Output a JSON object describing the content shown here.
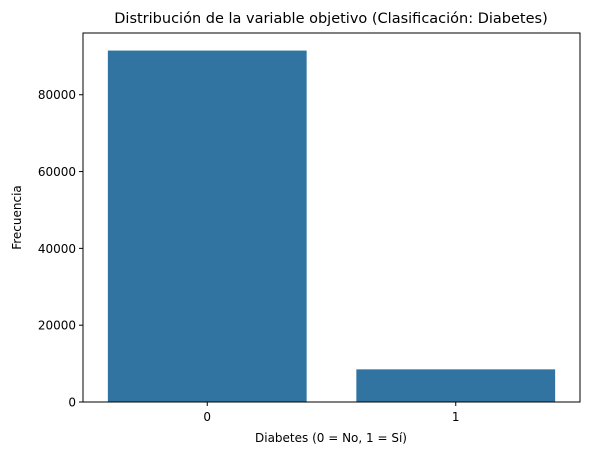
{
  "chart_data": {
    "type": "bar",
    "title": "Distribución de la variable objetivo (Clasificación: Diabetes)",
    "xlabel": "Diabetes (0 = No, 1 = Sí)",
    "ylabel": "Frecuencia",
    "categories": [
      "0",
      "1"
    ],
    "values": [
      91500,
      8500
    ],
    "ylim": [
      0,
      96075
    ],
    "yticks": [
      0,
      20000,
      40000,
      60000,
      80000
    ],
    "grid": false,
    "bar_color": "#3274a1"
  }
}
